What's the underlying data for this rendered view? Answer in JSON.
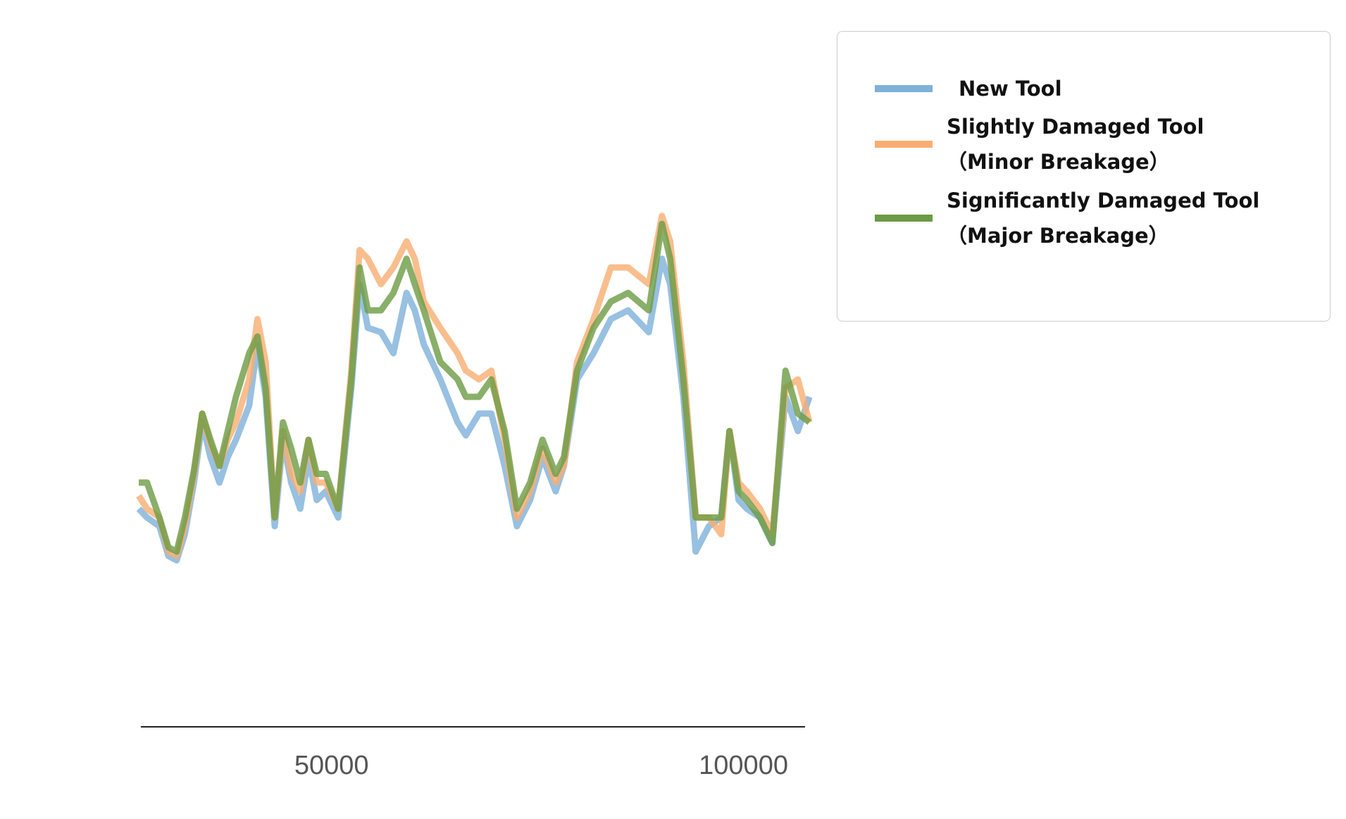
{
  "chart_data": {
    "type": "line",
    "x": [
      26600,
      27600,
      29100,
      30200,
      31200,
      32200,
      33300,
      34300,
      35300,
      36400,
      37400,
      38400,
      40000,
      41000,
      42000,
      43100,
      44100,
      45100,
      46200,
      47200,
      48200,
      49300,
      50800,
      52400,
      53400,
      54400,
      56000,
      57500,
      59100,
      60100,
      61200,
      63200,
      65300,
      66300,
      67900,
      69400,
      71000,
      72500,
      74100,
      75600,
      77200,
      78200,
      79800,
      81800,
      83900,
      86000,
      88500,
      90100,
      91100,
      92700,
      94200,
      95800,
      97300,
      98300,
      99400,
      100400,
      102000,
      103500,
      105100,
      106600,
      108000
    ],
    "series": [
      {
        "name": "New Tool",
        "color": "#7eb0d9",
        "values": [
          30.0,
          28.8,
          27.6,
          23.5,
          22.9,
          26.5,
          33.6,
          41.9,
          37.1,
          33.6,
          37.1,
          39.5,
          44.2,
          52.6,
          45.4,
          27.6,
          39.5,
          33.6,
          30.0,
          37.1,
          31.2,
          32.4,
          28.8,
          46.6,
          60.9,
          54.9,
          54.3,
          51.4,
          59.7,
          57.3,
          52.6,
          47.8,
          41.9,
          40.1,
          43.1,
          43.1,
          35.9,
          27.6,
          31.2,
          37.1,
          32.4,
          35.9,
          47.8,
          51.4,
          56.1,
          57.3,
          54.3,
          64.4,
          60.9,
          45.4,
          24.1,
          27.6,
          28.8,
          40.7,
          31.2,
          30.0,
          28.8,
          25.3,
          45.4,
          40.7,
          45.4
        ]
      },
      {
        "name": "Slightly Damaged Tool\n（Minor Breakage）",
        "color": "#f8ae72",
        "values": [
          31.8,
          30.0,
          28.8,
          24.1,
          23.5,
          27.6,
          34.8,
          43.1,
          38.9,
          35.9,
          39.5,
          41.9,
          47.8,
          56.1,
          50.2,
          28.8,
          40.7,
          34.8,
          32.4,
          39.5,
          33.6,
          33.6,
          30.0,
          49.0,
          65.6,
          64.4,
          60.9,
          63.2,
          66.8,
          64.4,
          58.5,
          54.9,
          51.4,
          49.0,
          47.8,
          49.0,
          39.5,
          28.8,
          32.4,
          38.3,
          33.6,
          35.9,
          50.2,
          56.1,
          63.2,
          63.2,
          60.9,
          70.3,
          66.8,
          50.2,
          28.8,
          28.8,
          26.5,
          40.7,
          33.6,
          32.4,
          30.0,
          26.5,
          46.6,
          47.8,
          41.9
        ]
      },
      {
        "name": "Significantly Damaged Tool\n（Major Breakage）",
        "color": "#6b9b44",
        "values": [
          33.6,
          33.6,
          28.8,
          24.7,
          24.1,
          28.8,
          35.3,
          43.1,
          39.5,
          35.9,
          40.7,
          45.4,
          51.4,
          53.7,
          46.6,
          28.8,
          41.9,
          38.3,
          33.6,
          39.5,
          34.8,
          34.8,
          30.0,
          47.8,
          63.2,
          57.3,
          57.3,
          59.7,
          64.4,
          60.9,
          57.3,
          50.2,
          47.8,
          45.4,
          45.4,
          47.8,
          40.7,
          30.0,
          33.6,
          39.5,
          34.8,
          37.1,
          49.0,
          54.9,
          58.5,
          59.7,
          57.3,
          69.2,
          64.4,
          47.8,
          28.8,
          28.8,
          28.8,
          40.7,
          32.4,
          31.2,
          28.8,
          25.3,
          49.0,
          43.1,
          41.9
        ]
      }
    ],
    "xlim": [
      26000,
      108500
    ],
    "ylim": [
      0,
      100
    ],
    "xticks": [
      50000,
      100000
    ],
    "legend": "right"
  }
}
